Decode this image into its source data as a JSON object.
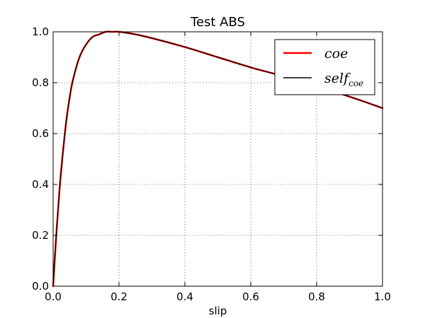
{
  "chart_data": {
    "type": "line",
    "title": "Test ABS",
    "xlabel": "slip",
    "ylabel": "",
    "xlim": [
      0.0,
      1.0
    ],
    "ylim": [
      0.0,
      1.0
    ],
    "xticks": [
      0.0,
      0.2,
      0.4,
      0.6,
      0.8,
      1.0
    ],
    "yticks": [
      0.0,
      0.2,
      0.4,
      0.6,
      0.8,
      1.0
    ],
    "xtick_labels": [
      "0.0",
      "0.2",
      "0.4",
      "0.6",
      "0.8",
      "1.0"
    ],
    "ytick_labels": [
      "0.0",
      "0.2",
      "0.4",
      "0.6",
      "0.8",
      "1.0"
    ],
    "grid": true,
    "legend_position": "top-right",
    "series": [
      {
        "name": "coe",
        "color": "#ff0000",
        "x": [
          0.0,
          0.01,
          0.02,
          0.03,
          0.04,
          0.05,
          0.06,
          0.08,
          0.1,
          0.12,
          0.14,
          0.16,
          0.18,
          0.2,
          0.25,
          0.3,
          0.4,
          0.5,
          0.6,
          0.7,
          0.8,
          0.9,
          1.0
        ],
        "y": [
          0.0,
          0.21,
          0.39,
          0.53,
          0.65,
          0.74,
          0.81,
          0.9,
          0.95,
          0.98,
          0.99,
          1.0,
          1.0,
          1.0,
          0.99,
          0.975,
          0.94,
          0.9,
          0.86,
          0.825,
          0.785,
          0.745,
          0.7
        ]
      },
      {
        "name": "self",
        "name_subscript": "coe",
        "color": "#000000",
        "x": [
          0.0,
          0.01,
          0.02,
          0.03,
          0.04,
          0.05,
          0.06,
          0.08,
          0.1,
          0.12,
          0.14,
          0.16,
          0.18,
          0.2,
          0.25,
          0.3,
          0.4,
          0.5,
          0.6,
          0.7,
          0.8,
          0.9,
          1.0
        ],
        "y": [
          0.0,
          0.21,
          0.39,
          0.53,
          0.65,
          0.74,
          0.81,
          0.9,
          0.95,
          0.98,
          0.99,
          1.0,
          1.0,
          1.0,
          0.99,
          0.975,
          0.94,
          0.9,
          0.86,
          0.825,
          0.785,
          0.745,
          0.7
        ]
      }
    ]
  }
}
